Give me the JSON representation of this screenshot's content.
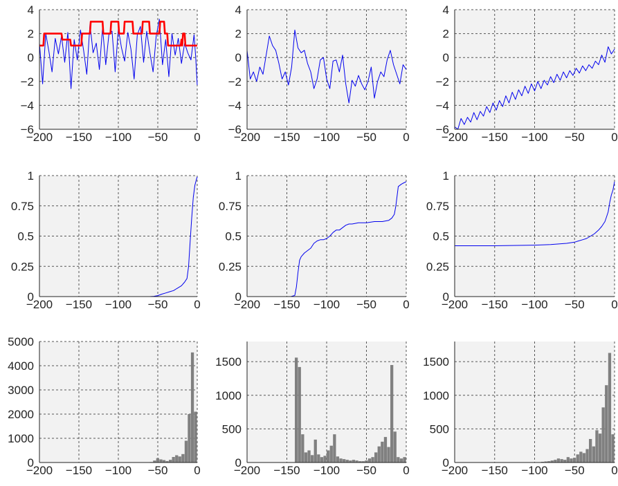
{
  "colors": {
    "panel_bg": "#f2f2f2",
    "grid": "#555555",
    "axis": "#222222",
    "series_blue": "#0000ee",
    "series_red": "#ff0000",
    "histogram": "#808080"
  },
  "chart_data": [
    {
      "type": "line",
      "xlim": [
        -200,
        0
      ],
      "ylim": [
        -6,
        4
      ],
      "xticks": [
        -200,
        -150,
        -100,
        -50,
        0
      ],
      "yticks": [
        -6,
        -4,
        -2,
        0,
        2,
        4
      ],
      "grid": true,
      "series": [
        {
          "color": "#0000ee",
          "x": [
            -200,
            -196,
            -192,
            -188,
            -184,
            -180,
            -176,
            -172,
            -168,
            -164,
            -160,
            -156,
            -152,
            -148,
            -144,
            -140,
            -136,
            -132,
            -128,
            -124,
            -120,
            -116,
            -112,
            -108,
            -104,
            -100,
            -96,
            -92,
            -88,
            -84,
            -80,
            -76,
            -72,
            -68,
            -64,
            -60,
            -56,
            -52,
            -48,
            -44,
            -40,
            -36,
            -32,
            -28,
            -24,
            -20,
            -16,
            -12,
            -8,
            -4,
            -2,
            0
          ],
          "y": [
            1.2,
            -2.2,
            2.0,
            0.5,
            -1.2,
            1.6,
            0.3,
            1.8,
            -0.4,
            2.1,
            -2.6,
            1.5,
            -0.2,
            2.3,
            0.6,
            -1.4,
            2.8,
            0.4,
            1.2,
            -1.0,
            2.5,
            -0.6,
            1.9,
            2.2,
            -1.2,
            2.4,
            0.8,
            -0.3,
            2.1,
            0.7,
            -1.8,
            1.9,
            2.6,
            -0.4,
            2.2,
            0.4,
            -1.2,
            1.8,
            3.2,
            -0.6,
            1.5,
            -1.6,
            2.0,
            0.2,
            1.6,
            -0.5,
            1.2,
            0.4,
            -0.2,
            1.9,
            0.1,
            -2.3
          ]
        },
        {
          "color": "#ff0000",
          "x": [
            -200,
            -195,
            -194,
            -172,
            -171,
            -161,
            -160,
            -147,
            -146,
            -136,
            -135,
            -120,
            -119,
            -110,
            -109,
            -100,
            -99,
            -93,
            -92,
            -82,
            -81,
            -70,
            -69,
            -61,
            -60,
            -48,
            -47,
            -42,
            -41,
            -38,
            -37,
            -21,
            -20,
            -19,
            -18,
            -16,
            -15,
            0
          ],
          "y": [
            1,
            1,
            2,
            2,
            1.5,
            1.5,
            1,
            1,
            2,
            2,
            3,
            3,
            2,
            2,
            3,
            3,
            2,
            2,
            3,
            3,
            2,
            2,
            3,
            3,
            2,
            2,
            3,
            3,
            2,
            2,
            1,
            1,
            1.5,
            1,
            2,
            2,
            1,
            1
          ]
        }
      ]
    },
    {
      "type": "line",
      "xlim": [
        -200,
        0
      ],
      "ylim": [
        -6,
        4
      ],
      "xticks": [
        -200,
        -150,
        -100,
        -50,
        0
      ],
      "yticks": [
        -6,
        -4,
        -2,
        0,
        2,
        4
      ],
      "grid": true,
      "series": [
        {
          "color": "#0000ee",
          "x": [
            -200,
            -196,
            -192,
            -188,
            -184,
            -180,
            -176,
            -172,
            -168,
            -164,
            -160,
            -156,
            -152,
            -148,
            -144,
            -140,
            -136,
            -132,
            -128,
            -124,
            -120,
            -116,
            -112,
            -108,
            -104,
            -100,
            -96,
            -92,
            -88,
            -84,
            -80,
            -76,
            -72,
            -68,
            -64,
            -60,
            -56,
            -52,
            -48,
            -44,
            -40,
            -36,
            -32,
            -28,
            -24,
            -20,
            -16,
            -12,
            -8,
            -4,
            0
          ],
          "y": [
            0.6,
            -1.8,
            -1.2,
            -2.0,
            -0.8,
            -1.4,
            0.2,
            1.8,
            1.0,
            0.6,
            -0.5,
            -1.8,
            -1.2,
            -2.3,
            -0.8,
            2.3,
            0.8,
            0.4,
            0.6,
            -0.5,
            -1.2,
            -2.6,
            -1.8,
            -0.2,
            0.0,
            -1.8,
            -2.6,
            -0.3,
            -0.2,
            -1.2,
            0.2,
            -2.2,
            -3.8,
            -1.9,
            -2.4,
            -1.5,
            -2.2,
            -2.7,
            -2.0,
            -0.8,
            -3.4,
            -2.0,
            -1.2,
            -1.6,
            -0.2,
            0.6,
            -0.6,
            -1.4,
            -2.2,
            -0.6,
            -1.0
          ]
        }
      ]
    },
    {
      "type": "line",
      "xlim": [
        -200,
        0
      ],
      "ylim": [
        -6,
        4
      ],
      "xticks": [
        -200,
        -150,
        -100,
        -50,
        0
      ],
      "yticks": [
        -6,
        -4,
        -2,
        0,
        2,
        4
      ],
      "grid": true,
      "series": [
        {
          "color": "#0000ee",
          "x": [
            -200,
            -196,
            -192,
            -188,
            -184,
            -180,
            -176,
            -172,
            -168,
            -164,
            -160,
            -156,
            -152,
            -148,
            -144,
            -140,
            -136,
            -132,
            -128,
            -124,
            -120,
            -116,
            -112,
            -108,
            -104,
            -100,
            -96,
            -92,
            -88,
            -84,
            -80,
            -76,
            -72,
            -68,
            -64,
            -60,
            -56,
            -52,
            -48,
            -44,
            -40,
            -36,
            -32,
            -28,
            -24,
            -20,
            -16,
            -12,
            -8,
            -4,
            0
          ],
          "y": [
            -5.8,
            -6.0,
            -5.1,
            -5.6,
            -5.0,
            -5.4,
            -4.6,
            -5.2,
            -4.5,
            -4.9,
            -4.1,
            -4.6,
            -3.8,
            -4.4,
            -3.6,
            -4.1,
            -3.2,
            -3.8,
            -2.9,
            -3.5,
            -2.7,
            -3.2,
            -2.4,
            -3.0,
            -2.2,
            -2.8,
            -2.0,
            -2.6,
            -1.9,
            -2.3,
            -1.6,
            -2.1,
            -1.4,
            -1.9,
            -1.2,
            -1.7,
            -1.1,
            -1.5,
            -0.9,
            -1.3,
            -0.7,
            -1.1,
            -0.6,
            -0.9,
            -0.3,
            -0.6,
            0.2,
            -0.4,
            0.9,
            0.3,
            0.7
          ]
        }
      ]
    },
    {
      "type": "line",
      "xlim": [
        -200,
        0
      ],
      "ylim": [
        0,
        1
      ],
      "xticks": [
        -200,
        -150,
        -100,
        -50,
        0
      ],
      "yticks": [
        0,
        0.25,
        0.5,
        0.75,
        1
      ],
      "ytick_labels": [
        "0",
        "0.25",
        "0.5",
        "0.75",
        "1"
      ],
      "grid": true,
      "series": [
        {
          "color": "#0000ee",
          "x": [
            -200,
            -150,
            -100,
            -60,
            -55,
            -50,
            -45,
            -40,
            -35,
            -30,
            -25,
            -20,
            -16,
            -13,
            -11,
            -9,
            -7,
            -5,
            -3,
            -1,
            0
          ],
          "y": [
            0,
            0,
            0,
            0,
            0.002,
            0.008,
            0.02,
            0.03,
            0.04,
            0.05,
            0.07,
            0.09,
            0.12,
            0.15,
            0.25,
            0.45,
            0.65,
            0.82,
            0.92,
            0.97,
            0.99
          ]
        }
      ]
    },
    {
      "type": "line",
      "xlim": [
        -200,
        0
      ],
      "ylim": [
        0,
        1
      ],
      "xticks": [
        -200,
        -150,
        -100,
        -50,
        0
      ],
      "yticks": [
        0,
        0.25,
        0.5,
        0.75,
        1
      ],
      "ytick_labels": [
        "0",
        "0.25",
        "0.5",
        "0.75",
        "1"
      ],
      "grid": true,
      "series": [
        {
          "color": "#0000ee",
          "x": [
            -200,
            -145,
            -140,
            -138,
            -136,
            -134,
            -132,
            -128,
            -124,
            -120,
            -116,
            -112,
            -108,
            -104,
            -100,
            -96,
            -92,
            -88,
            -84,
            -80,
            -76,
            -72,
            -68,
            -60,
            -50,
            -40,
            -30,
            -22,
            -18,
            -15,
            -13,
            -10,
            -6,
            -3,
            0
          ],
          "y": [
            0,
            0,
            0.01,
            0.08,
            0.2,
            0.3,
            0.33,
            0.36,
            0.38,
            0.4,
            0.44,
            0.46,
            0.47,
            0.47,
            0.48,
            0.5,
            0.53,
            0.55,
            0.55,
            0.57,
            0.59,
            0.6,
            0.6,
            0.61,
            0.61,
            0.62,
            0.62,
            0.63,
            0.65,
            0.68,
            0.75,
            0.91,
            0.93,
            0.94,
            0.95
          ]
        }
      ]
    },
    {
      "type": "line",
      "xlim": [
        -200,
        0
      ],
      "ylim": [
        0,
        1
      ],
      "xticks": [
        -200,
        -150,
        -100,
        -50,
        0
      ],
      "yticks": [
        0,
        0.25,
        0.5,
        0.75,
        1
      ],
      "ytick_labels": [
        "0",
        "0.25",
        "0.5",
        "0.75",
        "1"
      ],
      "grid": true,
      "series": [
        {
          "color": "#0000ee",
          "x": [
            -200,
            -150,
            -100,
            -80,
            -60,
            -50,
            -45,
            -40,
            -35,
            -30,
            -25,
            -20,
            -16,
            -12,
            -10,
            -8,
            -6,
            -4,
            -2,
            0
          ],
          "y": [
            0.42,
            0.42,
            0.425,
            0.43,
            0.44,
            0.45,
            0.46,
            0.47,
            0.48,
            0.5,
            0.52,
            0.55,
            0.58,
            0.62,
            0.66,
            0.7,
            0.78,
            0.84,
            0.88,
            0.95
          ]
        }
      ]
    },
    {
      "type": "bar",
      "xlim": [
        -200,
        0
      ],
      "ylim": [
        0,
        5000
      ],
      "xticks": [
        -200,
        -150,
        -100,
        -50,
        0
      ],
      "yticks": [
        0,
        1000,
        2000,
        3000,
        4000,
        5000
      ],
      "grid": true,
      "bin_width": 4,
      "bins": [
        -200,
        -196,
        -192,
        -188,
        -184,
        -180,
        -176,
        -172,
        -168,
        -164,
        -160,
        -156,
        -152,
        -148,
        -144,
        -140,
        -136,
        -132,
        -128,
        -124,
        -120,
        -116,
        -112,
        -108,
        -104,
        -100,
        -96,
        -92,
        -88,
        -84,
        -80,
        -76,
        -72,
        -68,
        -64,
        -60,
        -56,
        -52,
        -48,
        -44,
        -40,
        -36,
        -32,
        -28,
        -24,
        -20,
        -16,
        -12,
        -8,
        -4
      ],
      "values": [
        0,
        0,
        0,
        0,
        0,
        0,
        0,
        0,
        0,
        0,
        0,
        0,
        0,
        0,
        0,
        0,
        0,
        0,
        0,
        0,
        0,
        0,
        0,
        0,
        0,
        0,
        0,
        0,
        0,
        0,
        0,
        0,
        0,
        0,
        0,
        20,
        80,
        180,
        130,
        100,
        60,
        110,
        230,
        300,
        250,
        350,
        900,
        2000,
        4550,
        2100
      ]
    },
    {
      "type": "bar",
      "xlim": [
        -200,
        0
      ],
      "ylim": [
        0,
        1800
      ],
      "xticks": [
        -200,
        -150,
        -100,
        -50,
        0
      ],
      "yticks": [
        0,
        500,
        1000,
        1500
      ],
      "grid": true,
      "bin_width": 4,
      "bins": [
        -200,
        -196,
        -192,
        -188,
        -184,
        -180,
        -176,
        -172,
        -168,
        -164,
        -160,
        -156,
        -152,
        -148,
        -144,
        -140,
        -136,
        -132,
        -128,
        -124,
        -120,
        -116,
        -112,
        -108,
        -104,
        -100,
        -96,
        -92,
        -88,
        -84,
        -80,
        -76,
        -72,
        -68,
        -64,
        -60,
        -56,
        -52,
        -48,
        -44,
        -40,
        -36,
        -32,
        -28,
        -24,
        -20,
        -16,
        -12,
        -8,
        -4
      ],
      "values": [
        0,
        0,
        0,
        0,
        0,
        0,
        0,
        0,
        0,
        0,
        0,
        0,
        0,
        0,
        5,
        1560,
        1420,
        420,
        150,
        180,
        110,
        340,
        120,
        80,
        100,
        180,
        250,
        420,
        90,
        60,
        50,
        40,
        30,
        40,
        30,
        20,
        20,
        30,
        60,
        80,
        150,
        240,
        310,
        380,
        230,
        1450,
        460,
        80,
        60,
        80
      ]
    },
    {
      "type": "bar",
      "xlim": [
        -200,
        0
      ],
      "ylim": [
        0,
        1800
      ],
      "xticks": [
        -200,
        -150,
        -100,
        -50,
        0
      ],
      "yticks": [
        0,
        500,
        1000,
        1500
      ],
      "grid": true,
      "bin_width": 4,
      "bins": [
        -200,
        -196,
        -192,
        -188,
        -184,
        -180,
        -176,
        -172,
        -168,
        -164,
        -160,
        -156,
        -152,
        -148,
        -144,
        -140,
        -136,
        -132,
        -128,
        -124,
        -120,
        -116,
        -112,
        -108,
        -104,
        -100,
        -96,
        -92,
        -88,
        -84,
        -80,
        -76,
        -72,
        -68,
        -64,
        -60,
        -56,
        -52,
        -48,
        -44,
        -40,
        -36,
        -32,
        -28,
        -24,
        -20,
        -16,
        -12,
        -8,
        -4
      ],
      "values": [
        0,
        0,
        0,
        0,
        0,
        0,
        0,
        0,
        0,
        0,
        0,
        0,
        0,
        0,
        0,
        0,
        0,
        0,
        0,
        0,
        0,
        0,
        0,
        0,
        0,
        0,
        5,
        10,
        15,
        20,
        30,
        40,
        60,
        50,
        40,
        80,
        60,
        70,
        120,
        160,
        140,
        200,
        350,
        240,
        480,
        430,
        820,
        1150,
        1630,
        420
      ]
    }
  ]
}
